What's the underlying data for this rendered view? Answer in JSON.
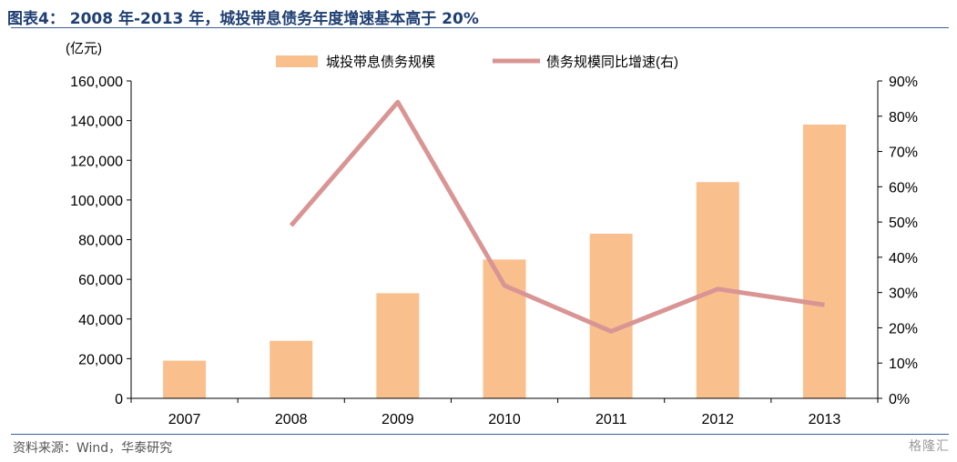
{
  "header": {
    "title": "图表4： 2008 年-2013 年，城投带息债务年度增速基本高于 20%"
  },
  "footer": {
    "source": "资料来源：Wind，华泰研究",
    "logo": "格隆汇"
  },
  "chart_data": {
    "type": "bar",
    "categories": [
      "2007",
      "2008",
      "2009",
      "2010",
      "2011",
      "2012",
      "2013"
    ],
    "series": [
      {
        "name": "城投带息债务规模",
        "type": "bar",
        "axis": "left",
        "values": [
          19000,
          29000,
          53000,
          70000,
          83000,
          109000,
          138000
        ]
      },
      {
        "name": "债务规模同比增速(右)",
        "type": "line",
        "axis": "right",
        "values": [
          null,
          49,
          84,
          32,
          19,
          31,
          26.5
        ]
      }
    ],
    "y_left": {
      "unit": "(亿元)",
      "ylim": [
        0,
        160000
      ],
      "ticks": [
        0,
        20000,
        40000,
        60000,
        80000,
        100000,
        120000,
        140000,
        160000
      ],
      "tick_labels": [
        "0",
        "20,000",
        "40,000",
        "60,000",
        "80,000",
        "100,000",
        "120,000",
        "140,000",
        "160,000"
      ]
    },
    "y_right": {
      "ylim": [
        0,
        90
      ],
      "ticks": [
        0,
        10,
        20,
        30,
        40,
        50,
        60,
        70,
        80,
        90
      ],
      "tick_labels": [
        "0%",
        "10%",
        "20%",
        "30%",
        "40%",
        "50%",
        "60%",
        "70%",
        "80%",
        "90%"
      ]
    },
    "colors": {
      "bar": "#f9c08e",
      "line": "#d99594"
    },
    "legend": "top",
    "grid": false
  }
}
